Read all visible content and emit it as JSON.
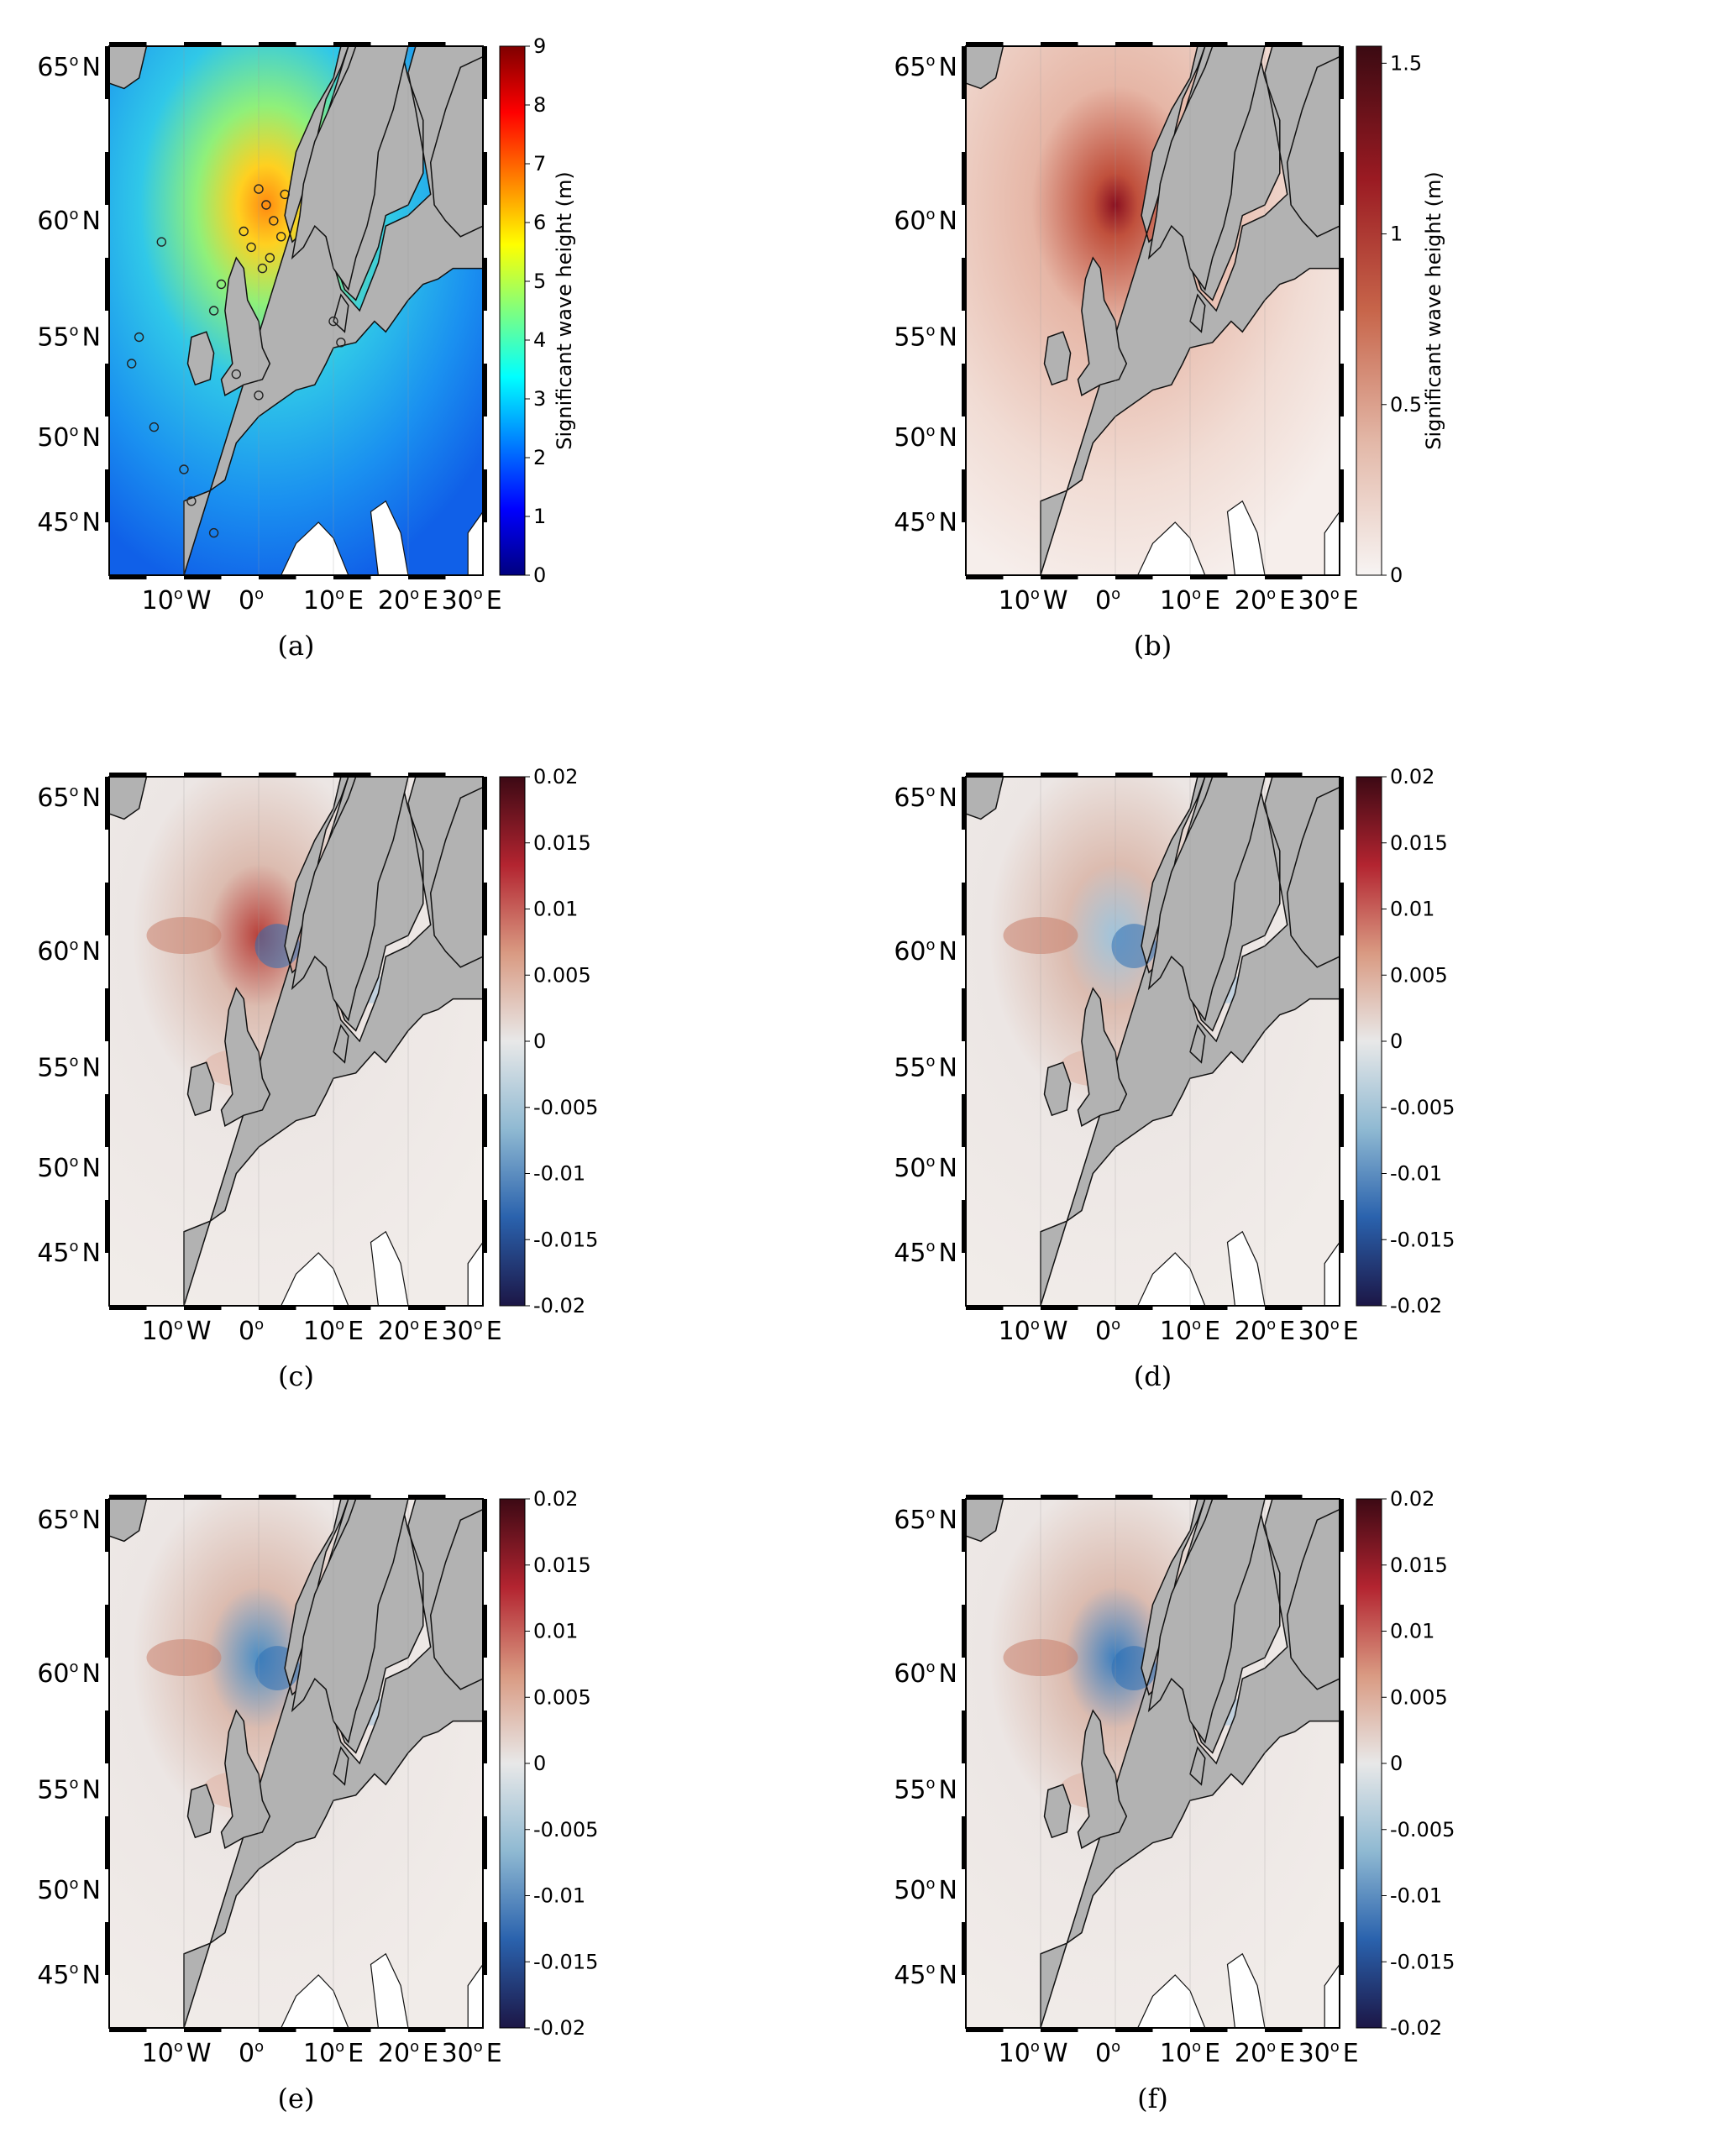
{
  "panels": [
    {
      "id": "a",
      "caption": "(a)",
      "scheme": "jet",
      "cbar_ticks": [
        "0",
        "1",
        "2",
        "3",
        "4",
        "5",
        "6",
        "7",
        "8",
        "9"
      ],
      "cbar_label": "Significant wave height (m)",
      "lat_ticks": [
        "65",
        "60",
        "55",
        "50",
        "45"
      ],
      "lon_ticks": [
        "10",
        "0",
        "10",
        "20",
        "30"
      ],
      "lon_hemi": [
        "W",
        "",
        "E",
        "E",
        "E"
      ],
      "has_buoys": true
    },
    {
      "id": "b",
      "caption": "(b)",
      "scheme": "reds",
      "cbar_ticks": [
        "0",
        "0.5",
        "1",
        "1.5"
      ],
      "cbar_label": "Significant wave height (m)",
      "lat_ticks": [
        "65",
        "60",
        "55",
        "50",
        "45"
      ],
      "lon_ticks": [
        "10",
        "0",
        "10",
        "20",
        "30"
      ],
      "lon_hemi": [
        "W",
        "",
        "E",
        "E",
        "E"
      ],
      "has_buoys": false
    },
    {
      "id": "c",
      "caption": "(c)",
      "scheme": "diverging",
      "cbar_ticks": [
        "-0.02",
        "-0.015",
        "-0.01",
        "-0.005",
        "0",
        "0.005",
        "0.01",
        "0.015",
        "0.02"
      ],
      "cbar_label": "",
      "lat_ticks": [
        "65",
        "60",
        "55",
        "50",
        "45"
      ],
      "lon_ticks": [
        "10",
        "0",
        "10",
        "20",
        "30"
      ],
      "lon_hemi": [
        "W",
        "",
        "E",
        "E",
        "E"
      ],
      "has_buoys": false
    },
    {
      "id": "d",
      "caption": "(d)",
      "scheme": "diverging",
      "cbar_ticks": [
        "-0.02",
        "-0.015",
        "-0.01",
        "-0.005",
        "0",
        "0.005",
        "0.01",
        "0.015",
        "0.02"
      ],
      "cbar_label": "",
      "lat_ticks": [
        "65",
        "60",
        "55",
        "50",
        "45"
      ],
      "lon_ticks": [
        "10",
        "0",
        "10",
        "20",
        "30"
      ],
      "lon_hemi": [
        "W",
        "",
        "E",
        "E",
        "E"
      ],
      "has_buoys": false
    },
    {
      "id": "e",
      "caption": "(e)",
      "scheme": "diverging",
      "cbar_ticks": [
        "-0.02",
        "-0.015",
        "-0.01",
        "-0.005",
        "0",
        "0.005",
        "0.01",
        "0.015",
        "0.02"
      ],
      "cbar_label": "",
      "lat_ticks": [
        "65",
        "60",
        "55",
        "50",
        "45"
      ],
      "lon_ticks": [
        "10",
        "0",
        "10",
        "20",
        "30"
      ],
      "lon_hemi": [
        "W",
        "",
        "E",
        "E",
        "E"
      ],
      "has_buoys": false
    },
    {
      "id": "f",
      "caption": "(f)",
      "scheme": "diverging",
      "cbar_ticks": [
        "-0.02",
        "-0.015",
        "-0.01",
        "-0.005",
        "0",
        "0.005",
        "0.01",
        "0.015",
        "0.02"
      ],
      "cbar_label": "",
      "lat_ticks": [
        "65",
        "60",
        "55",
        "50",
        "45"
      ],
      "lon_ticks": [
        "10",
        "0",
        "10",
        "20",
        "30"
      ],
      "lon_hemi": [
        "W",
        "",
        "E",
        "E",
        "E"
      ],
      "has_buoys": false
    }
  ],
  "degree_symbol": "o",
  "lat_hemi": "N",
  "colors": {
    "land": "#b2b2b2",
    "coast": "#111111",
    "jet": [
      "#00007f",
      "#0000ff",
      "#007fff",
      "#00ffff",
      "#7fff7f",
      "#ffff00",
      "#ff7f00",
      "#ff0000",
      "#7f0000"
    ],
    "reds": [
      "#f7f4f3",
      "#e3b8a8",
      "#c7654a",
      "#9a1a22",
      "#3b0a12"
    ],
    "diverging": [
      "#1c1646",
      "#2a62ad",
      "#8fb9d2",
      "#e8e8e8",
      "#d99a82",
      "#b32430",
      "#3c0914"
    ]
  }
}
